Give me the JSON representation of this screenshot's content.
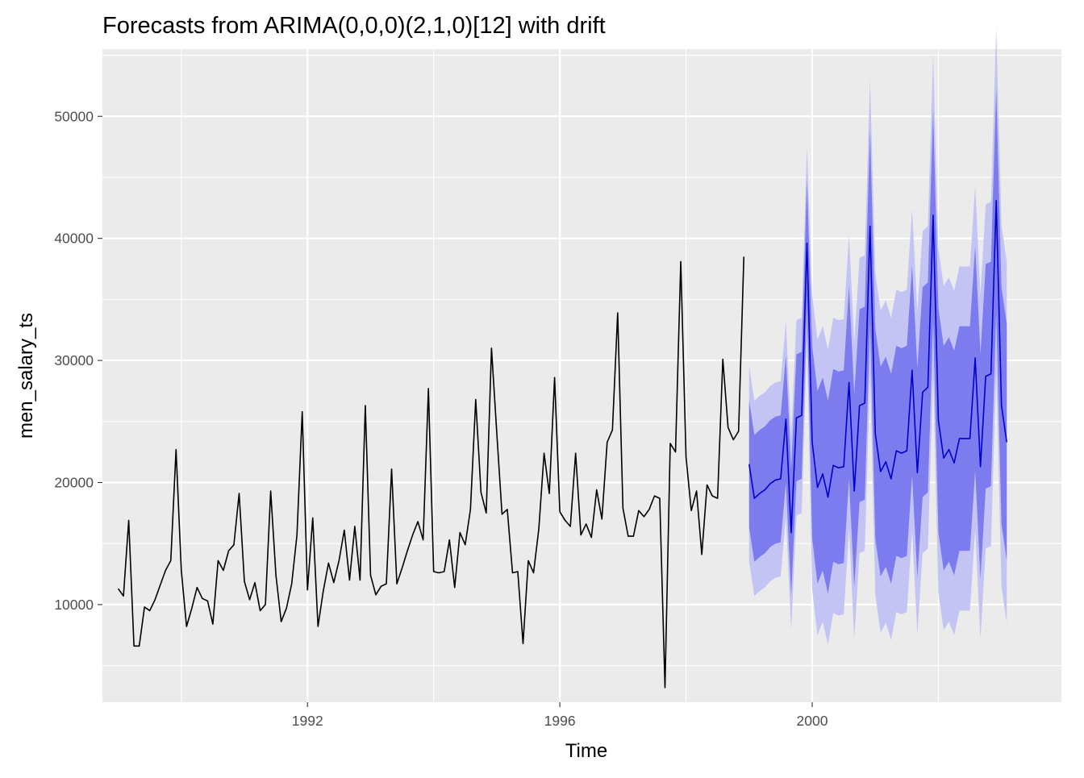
{
  "chart_data": {
    "type": "line",
    "title": "Forecasts from ARIMA(0,0,0)(2,1,0)[12] with drift",
    "xlabel": "Time",
    "ylabel": "men_salary_ts",
    "xlim": [
      1988.75,
      2003.95
    ],
    "ylim": [
      2000,
      55500
    ],
    "x_ticks": [
      1992,
      1996,
      2000
    ],
    "x_tick_labels": [
      "1992",
      "1996",
      "2000"
    ],
    "x_minor_ticks": [
      1990,
      1994,
      1998,
      2002
    ],
    "y_ticks": [
      10000,
      20000,
      30000,
      40000,
      50000
    ],
    "y_tick_labels": [
      "10000",
      "20000",
      "30000",
      "40000",
      "50000"
    ],
    "y_minor_ticks": [
      5000,
      15000,
      25000,
      35000,
      45000,
      55000
    ],
    "grid": true,
    "legend": "none",
    "colors": {
      "panel_background": "#ebebeb",
      "grid": "#ffffff",
      "history_line": "#000000",
      "forecast_line": "#0000cc",
      "band_95": "#c4c4f4",
      "band_80": "#7c7cee"
    },
    "history": {
      "start": 1989.0,
      "frequency": 12,
      "values": [
        11300,
        10700,
        16900,
        6600,
        6600,
        9800,
        9500,
        10400,
        11600,
        12800,
        13600,
        22700,
        12800,
        8200,
        9700,
        11400,
        10500,
        10300,
        8400,
        13600,
        12800,
        14400,
        14900,
        19100,
        11900,
        10400,
        11800,
        9500,
        10000,
        19300,
        12400,
        8600,
        9700,
        11700,
        15700,
        25800,
        11200,
        17100,
        8200,
        11100,
        13400,
        11800,
        13600,
        16100,
        12000,
        16400,
        12000,
        26300,
        12400,
        10800,
        11500,
        11700,
        21100,
        11700,
        13000,
        14400,
        15700,
        16800,
        15300,
        27700,
        12700,
        12600,
        12700,
        15300,
        11400,
        15900,
        14900,
        17800,
        26800,
        19200,
        17500,
        31000,
        24100,
        17400,
        17800,
        12600,
        12700,
        6800,
        13600,
        12600,
        16200,
        22400,
        19100,
        28600,
        17600,
        16900,
        16400,
        22400,
        15700,
        16600,
        15500,
        19400,
        17000,
        23300,
        24300,
        33900,
        17900,
        15600,
        15600,
        17700,
        17200,
        17800,
        18900,
        18700,
        3200,
        23200,
        22500,
        38100,
        22100,
        17700,
        19300,
        14100,
        19800,
        18900,
        18700,
        30100,
        24500,
        23500,
        24200,
        38500
      ]
    },
    "forecast": {
      "start": 1999.0,
      "frequency": 12,
      "mean": [
        21500,
        18700,
        19100,
        19400,
        19900,
        20200,
        20300,
        25200,
        15900,
        25300,
        25500,
        39600,
        23300,
        19600,
        20700,
        18800,
        21400,
        21200,
        21300,
        28200,
        19300,
        26300,
        26500,
        41000,
        24000,
        20900,
        21700,
        20300,
        22600,
        22400,
        22600,
        29200,
        20800,
        27400,
        27800,
        41900,
        25100,
        22000,
        22700,
        21600,
        23600,
        23600,
        23600,
        30200,
        21300,
        28700,
        28900,
        43100,
        26300,
        23300
      ],
      "lo80": [
        16300,
        13500,
        13900,
        14200,
        14700,
        15000,
        15100,
        20000,
        10700,
        20100,
        20300,
        34400,
        15400,
        11700,
        12800,
        10900,
        13500,
        13300,
        13400,
        20300,
        11400,
        18400,
        18600,
        33100,
        15400,
        12300,
        13100,
        11700,
        14000,
        13800,
        14000,
        20600,
        12200,
        18800,
        19200,
        33300,
        15900,
        12800,
        13500,
        12400,
        14400,
        14400,
        14400,
        21000,
        12100,
        19500,
        19700,
        33900,
        16600,
        13600
      ],
      "hi80": [
        26700,
        23900,
        24300,
        24600,
        25100,
        25400,
        25500,
        30400,
        21100,
        30500,
        30700,
        44800,
        31200,
        27500,
        28600,
        26700,
        29300,
        29100,
        29200,
        36100,
        27200,
        34200,
        34400,
        48900,
        32600,
        29500,
        30300,
        28900,
        31200,
        31000,
        31200,
        37800,
        29400,
        36000,
        36400,
        50500,
        34300,
        31200,
        31900,
        30800,
        32800,
        32800,
        32800,
        39400,
        30500,
        37900,
        38100,
        52300,
        36000,
        33000
      ],
      "lo95": [
        13500,
        10700,
        11100,
        11400,
        11900,
        12200,
        12300,
        17200,
        7900,
        17300,
        17500,
        31600,
        11200,
        7500,
        8600,
        6700,
        9300,
        9100,
        9200,
        16100,
        7200,
        14200,
        14400,
        28900,
        10800,
        7700,
        8500,
        7100,
        9400,
        9200,
        9400,
        16000,
        7600,
        14200,
        14600,
        28700,
        11000,
        7900,
        8600,
        7500,
        9500,
        9500,
        9500,
        16100,
        7200,
        14600,
        14800,
        29000,
        11500,
        8500
      ],
      "hi95": [
        29500,
        26700,
        27100,
        27400,
        27900,
        28200,
        28300,
        33200,
        23900,
        33300,
        33500,
        47600,
        35400,
        31700,
        32800,
        30900,
        33500,
        33300,
        33400,
        40300,
        31400,
        38400,
        38600,
        53100,
        37200,
        34100,
        34900,
        33500,
        35800,
        35600,
        35800,
        42400,
        34000,
        40600,
        41000,
        55100,
        39200,
        36100,
        36800,
        35700,
        37700,
        37700,
        37700,
        44300,
        35400,
        42800,
        43000,
        57200,
        41100,
        38100
      ]
    }
  }
}
